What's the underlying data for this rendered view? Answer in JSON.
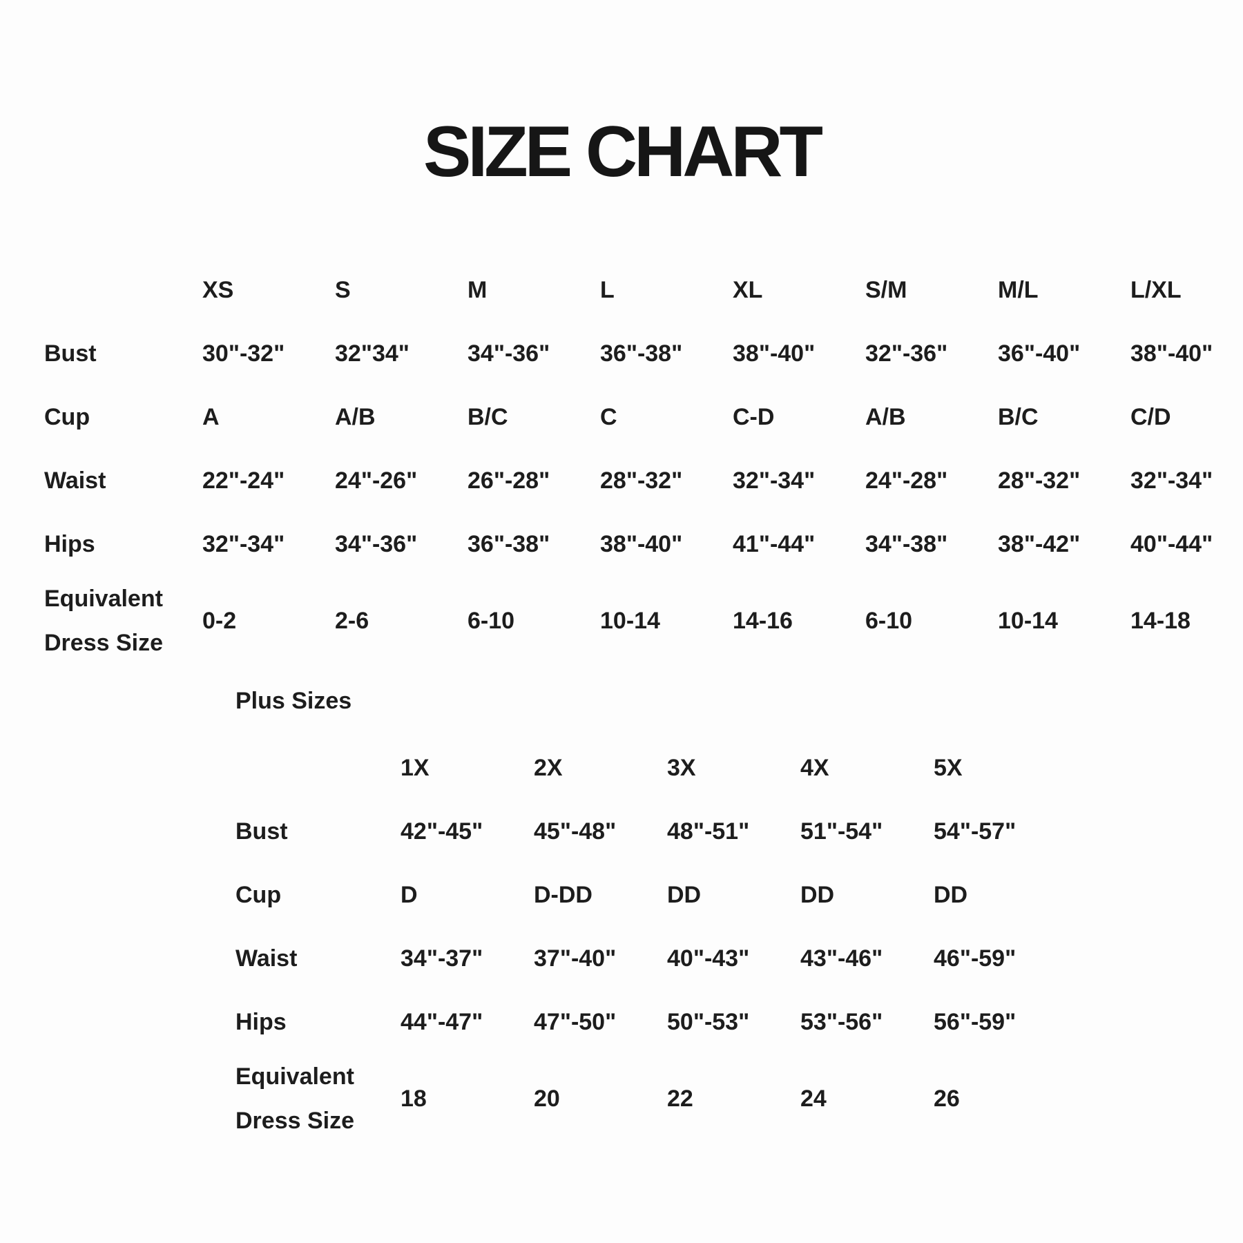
{
  "colors": {
    "background": "#fdfdfd",
    "text": "#1d1d1d"
  },
  "chart_data": [
    {
      "type": "table",
      "title": "SIZE CHART",
      "columns": [
        "XS",
        "S",
        "M",
        "L",
        "XL",
        "S/M",
        "M/L",
        "L/XL"
      ],
      "rows": [
        {
          "label": "Bust",
          "values": [
            "30\"-32\"",
            "32\"34\"",
            "34\"-36\"",
            "36\"-38\"",
            "38\"-40\"",
            "32\"-36\"",
            "36\"-40\"",
            "38\"-40\""
          ]
        },
        {
          "label": "Cup",
          "values": [
            "A",
            "A/B",
            "B/C",
            "C",
            "C-D",
            "A/B",
            "B/C",
            "C/D"
          ]
        },
        {
          "label": "Waist",
          "values": [
            "22\"-24\"",
            "24\"-26\"",
            "26\"-28\"",
            "28\"-32\"",
            "32\"-34\"",
            "24\"-28\"",
            "28\"-32\"",
            "32\"-34\""
          ]
        },
        {
          "label": "Hips",
          "values": [
            "32\"-34\"",
            "34\"-36\"",
            "36\"-38\"",
            "38\"-40\"",
            "41\"-44\"",
            "34\"-38\"",
            "38\"-42\"",
            "40\"-44\""
          ]
        },
        {
          "label": "Equivalent Dress Size",
          "label_lines": [
            "Equivalent",
            "Dress Size"
          ],
          "values": [
            "0-2",
            "2-6",
            "6-10",
            "10-14",
            "14-16",
            "6-10",
            "10-14",
            "14-18"
          ]
        }
      ]
    },
    {
      "type": "table",
      "title": "Plus Sizes",
      "columns": [
        "1X",
        "2X",
        "3X",
        "4X",
        "5X"
      ],
      "rows": [
        {
          "label": "Bust",
          "values": [
            "42\"-45\"",
            "45\"-48\"",
            "48\"-51\"",
            "51\"-54\"",
            "54\"-57\""
          ]
        },
        {
          "label": "Cup",
          "values": [
            "D",
            "D-DD",
            "DD",
            "DD",
            "DD"
          ]
        },
        {
          "label": "Waist",
          "values": [
            "34\"-37\"",
            "37\"-40\"",
            "40\"-43\"",
            "43\"-46\"",
            "46\"-59\""
          ]
        },
        {
          "label": "Hips",
          "values": [
            "44\"-47\"",
            "47\"-50\"",
            "50\"-53\"",
            "53\"-56\"",
            "56\"-59\""
          ]
        },
        {
          "label": "Equivalent Dress Size",
          "label_lines": [
            "Equivalent",
            "Dress Size"
          ],
          "values": [
            "18",
            "20",
            "22",
            "24",
            "26"
          ]
        }
      ]
    }
  ]
}
